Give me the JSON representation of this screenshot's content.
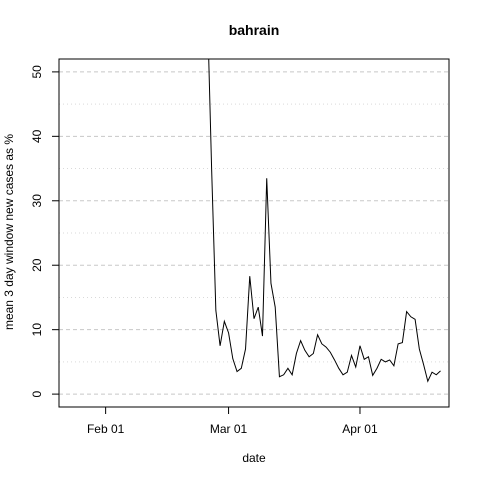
{
  "chart_data": {
    "type": "line",
    "title": "bahrain",
    "xlabel": "date",
    "ylabel": "mean  3  day window new cases as %",
    "x_axis_type": "date",
    "xlim": [
      "2020-01-21",
      "2020-04-22"
    ],
    "ylim": [
      -2,
      52
    ],
    "x_ticks": [
      {
        "date": "2020-02-01",
        "label": "Feb 01"
      },
      {
        "date": "2020-03-01",
        "label": "Mar 01"
      },
      {
        "date": "2020-04-01",
        "label": "Apr 01"
      }
    ],
    "y_ticks": [
      0,
      10,
      20,
      30,
      40,
      50
    ],
    "grid": {
      "horizontal": true,
      "style": "dashed",
      "major_color": "#c8c8c8",
      "minor_color": "#d9d9d9",
      "minor_ticks": [
        5,
        15,
        25,
        35,
        45
      ]
    },
    "line_color": "#000000",
    "series": [
      {
        "x": [
          "2020-02-25",
          "2020-02-26",
          "2020-02-27",
          "2020-02-28",
          "2020-02-29",
          "2020-03-01",
          "2020-03-02",
          "2020-03-03",
          "2020-03-04",
          "2020-03-05",
          "2020-03-06",
          "2020-03-07",
          "2020-03-08",
          "2020-03-09",
          "2020-03-10",
          "2020-03-11",
          "2020-03-12",
          "2020-03-13",
          "2020-03-14",
          "2020-03-15",
          "2020-03-16",
          "2020-03-17",
          "2020-03-18",
          "2020-03-19",
          "2020-03-20",
          "2020-03-21",
          "2020-03-22",
          "2020-03-23",
          "2020-03-24",
          "2020-03-25",
          "2020-03-26",
          "2020-03-27",
          "2020-03-28",
          "2020-03-29",
          "2020-03-30",
          "2020-03-31",
          "2020-04-01",
          "2020-04-02",
          "2020-04-03",
          "2020-04-04",
          "2020-04-05",
          "2020-04-06",
          "2020-04-07",
          "2020-04-08",
          "2020-04-09",
          "2020-04-10",
          "2020-04-11",
          "2020-04-12",
          "2020-04-13",
          "2020-04-14",
          "2020-04-15",
          "2020-04-16",
          "2020-04-17",
          "2020-04-18",
          "2020-04-19",
          "2020-04-20"
        ],
        "values": [
          60.0,
          35.0,
          13.0,
          7.5,
          11.3,
          9.5,
          5.5,
          3.5,
          4.0,
          7.0,
          18.3,
          11.7,
          13.5,
          9.0,
          33.5,
          17.2,
          13.5,
          2.7,
          3.0,
          4.0,
          3.0,
          6.3,
          8.3,
          6.8,
          5.8,
          6.3,
          9.2,
          7.8,
          7.3,
          6.5,
          5.3,
          4.0,
          3.0,
          3.4,
          6.0,
          4.2,
          7.5,
          5.4,
          5.8,
          2.9,
          4.0,
          5.4,
          5.0,
          5.3,
          4.4,
          7.8,
          8.0,
          12.8,
          12.0,
          11.6,
          7.0,
          4.6,
          2.0,
          3.4,
          3.0,
          3.6
        ]
      }
    ]
  }
}
